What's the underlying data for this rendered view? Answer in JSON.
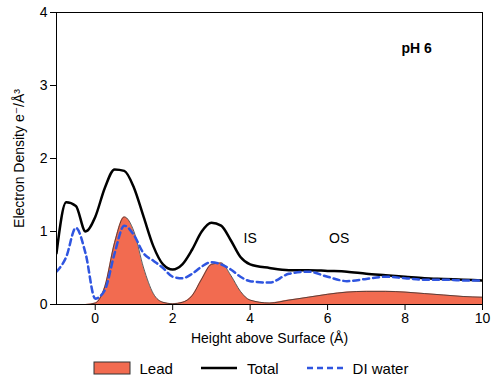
{
  "chart_data": {
    "type": "line",
    "x_label": "Height above Surface (Å)",
    "y_label": "Electron Density e⁻/Å³",
    "xlim": [
      -1,
      10
    ],
    "xticks": [
      0,
      2,
      4,
      6,
      8,
      10
    ],
    "ylim": [
      0,
      4
    ],
    "yticks": [
      0,
      1,
      2,
      3,
      4
    ],
    "grid": false,
    "legend": "bottom",
    "x": [
      -1,
      -0.75,
      -0.5,
      -0.25,
      0,
      0.25,
      0.5,
      0.75,
      1,
      1.25,
      1.5,
      1.75,
      2,
      2.25,
      2.5,
      2.75,
      3,
      3.25,
      3.5,
      3.75,
      4,
      4.5,
      5,
      5.5,
      6,
      6.5,
      7,
      7.5,
      8,
      8.5,
      9,
      9.5,
      10
    ],
    "series": [
      {
        "name": "Lead",
        "type": "area",
        "color": "#f26b50",
        "values": [
          0,
          0,
          0,
          0,
          0.02,
          0.25,
          0.85,
          1.2,
          1.0,
          0.5,
          0.15,
          0.03,
          0.01,
          0.03,
          0.12,
          0.35,
          0.55,
          0.57,
          0.4,
          0.18,
          0.06,
          0.02,
          0.06,
          0.1,
          0.14,
          0.17,
          0.18,
          0.18,
          0.17,
          0.15,
          0.13,
          0.11,
          0.1
        ]
      },
      {
        "name": "Total",
        "type": "line",
        "color": "#000000",
        "line_style": "solid",
        "values": [
          0.7,
          1.4,
          1.35,
          1.0,
          1.2,
          1.6,
          1.85,
          1.83,
          1.6,
          1.2,
          0.8,
          0.55,
          0.48,
          0.55,
          0.75,
          1.0,
          1.12,
          1.08,
          0.88,
          0.65,
          0.55,
          0.5,
          0.47,
          0.47,
          0.46,
          0.45,
          0.42,
          0.4,
          0.38,
          0.36,
          0.35,
          0.34,
          0.33
        ]
      },
      {
        "name": "DI water",
        "type": "line",
        "color": "#2f55e0",
        "line_style": "dashed",
        "values": [
          0.45,
          0.65,
          1.05,
          0.7,
          0.08,
          0.2,
          0.7,
          1.08,
          0.95,
          0.7,
          0.6,
          0.5,
          0.38,
          0.36,
          0.42,
          0.52,
          0.58,
          0.55,
          0.48,
          0.38,
          0.32,
          0.3,
          0.42,
          0.45,
          0.38,
          0.32,
          0.35,
          0.38,
          0.36,
          0.34,
          0.34,
          0.33,
          0.33
        ]
      }
    ],
    "annotations": [
      {
        "text": "pH 6",
        "x": 8.3,
        "y": 3.5
      },
      {
        "text": "IS",
        "x": 4.0,
        "y": 0.9
      },
      {
        "text": "OS",
        "x": 6.3,
        "y": 0.9
      }
    ]
  }
}
